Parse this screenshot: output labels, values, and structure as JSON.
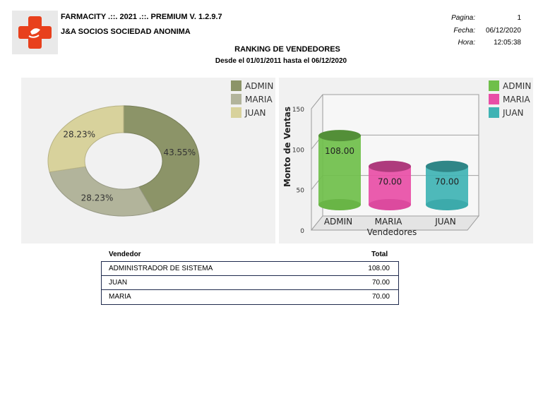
{
  "header": {
    "company_name": "FARMACITY .::. 2021 .::. PREMIUM V. 1.2.9.7",
    "company_subtitle": "J&A SOCIOS SOCIEDAD ANONIMA",
    "meta": [
      {
        "label": "Pagina:",
        "value": "1"
      },
      {
        "label": "Fecha:",
        "value": "06/12/2020"
      },
      {
        "label": "Hora:",
        "value": "12:05:38"
      }
    ]
  },
  "report": {
    "title": "RANKING DE VENDEDORES",
    "range": "Desde el 01/01/2011 hasta el 06/12/2020"
  },
  "colors": {
    "logo_red": "#e8401c",
    "pie_admin": "#8c9468",
    "pie_maria": "#b2b49b",
    "pie_juan": "#d8d29c",
    "bar_admin": "#6fbf4a",
    "bar_maria": "#e84ea6",
    "bar_juan": "#3fb3b4"
  },
  "chart_data": [
    {
      "type": "pie",
      "donut": true,
      "categories": [
        "ADMIN",
        "MARIA",
        "JUAN"
      ],
      "values": [
        43.55,
        28.23,
        28.23
      ],
      "labels": [
        "43.55%",
        "28.23%",
        "28.23%"
      ],
      "legend": "top-right",
      "title": ""
    },
    {
      "type": "bar",
      "style": "3d-cylinder",
      "categories": [
        "ADMIN",
        "MARIA",
        "JUAN"
      ],
      "values": [
        108.0,
        70.0,
        70.0
      ],
      "value_labels": [
        "108.00",
        "70.00",
        "70.00"
      ],
      "xlabel": "Vendedores",
      "ylabel": "Monto de Ventas",
      "ylim": [
        0,
        150
      ],
      "yticks": [
        "0",
        "50",
        "100",
        "150"
      ],
      "legend": "top-right",
      "grid": true,
      "title": ""
    }
  ],
  "table": {
    "headers": {
      "name": "Vendedor",
      "total": "Total"
    },
    "rows": [
      {
        "name": "ADMINISTRADOR DE SISTEMA",
        "total": "108.00"
      },
      {
        "name": "JUAN",
        "total": "70.00"
      },
      {
        "name": "MARIA",
        "total": "70.00"
      }
    ]
  }
}
